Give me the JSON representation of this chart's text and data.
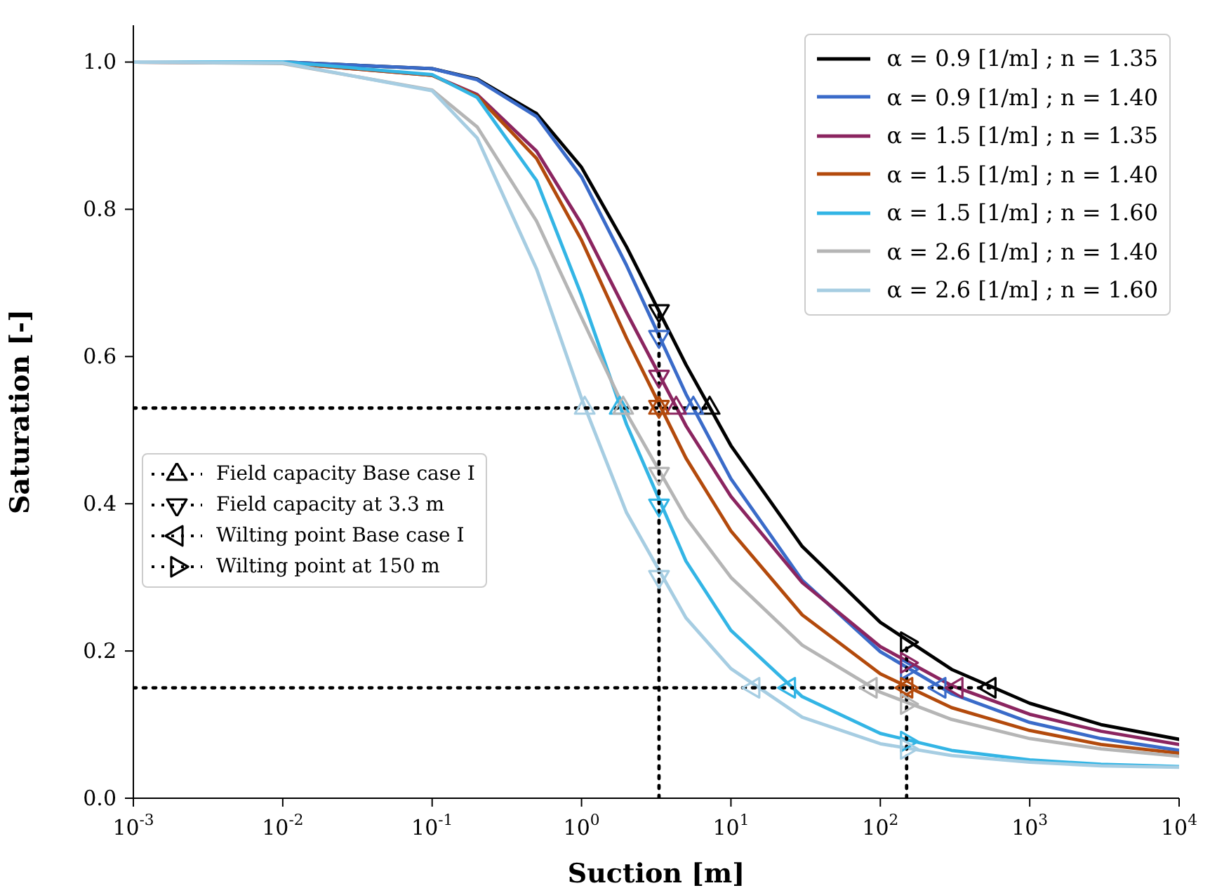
{
  "chart_data": {
    "type": "line",
    "xlabel": "Suction [m]",
    "ylabel": "Saturation [-]",
    "log": "x",
    "legend": "top right",
    "xlim": [
      0.001,
      10000
    ],
    "xticks": [
      {
        "value": 0.001,
        "label": "10$^{-3}$"
      },
      {
        "value": 0.01,
        "label": "10$^{-2}$"
      },
      {
        "value": 0.1,
        "label": "10$^{-1}$"
      },
      {
        "value": 1,
        "label": "10$^{0}$"
      },
      {
        "value": 10,
        "label": "10$^{1}$"
      },
      {
        "value": 100,
        "label": "10$^{2}$"
      },
      {
        "value": 1000,
        "label": "10$^{3}$"
      },
      {
        "value": 10000,
        "label": "10$^{4}$"
      }
    ],
    "ylim": [
      0,
      1.05
    ],
    "yticks": [
      {
        "value": 0,
        "label": "0.0"
      },
      {
        "value": 0.2,
        "label": "0.2"
      },
      {
        "value": 0.4,
        "label": "0.4"
      },
      {
        "value": 0.6,
        "label": "0.6"
      },
      {
        "value": 0.8,
        "label": "0.8"
      },
      {
        "value": 1,
        "label": "1.0"
      }
    ],
    "x": [
      0.001,
      0.01,
      0.1,
      0.2,
      0.5,
      1,
      2,
      5,
      10,
      30,
      100,
      300,
      1000,
      3000,
      10000
    ],
    "series": [
      {
        "name": "α = 0.9 [1/m] ; n = 1.35",
        "color": "#000000",
        "values": [
          1.0,
          1.0,
          0.991,
          0.977,
          0.93,
          0.857,
          0.749,
          0.589,
          0.479,
          0.342,
          0.239,
          0.175,
          0.129,
          0.1,
          0.08
        ]
      },
      {
        "name": "α = 0.9 [1/m] ; n = 1.40",
        "color": "#3a6bc9",
        "values": [
          1.0,
          1.0,
          0.991,
          0.976,
          0.926,
          0.844,
          0.724,
          0.549,
          0.434,
          0.296,
          0.199,
          0.142,
          0.103,
          0.081,
          0.065
        ]
      },
      {
        "name": "α = 1.5 [1/m] ; n = 1.35",
        "color": "#8b2560",
        "values": [
          1.0,
          0.999,
          0.982,
          0.956,
          0.879,
          0.78,
          0.66,
          0.506,
          0.41,
          0.293,
          0.206,
          0.153,
          0.114,
          0.091,
          0.073
        ]
      },
      {
        "name": "α = 1.5 [1/m] ; n = 1.40",
        "color": "#b34a0c",
        "values": [
          1.0,
          0.999,
          0.982,
          0.954,
          0.869,
          0.758,
          0.625,
          0.462,
          0.363,
          0.249,
          0.169,
          0.123,
          0.092,
          0.073,
          0.061
        ]
      },
      {
        "name": "α = 1.5 [1/m] ; n = 1.60",
        "color": "#33b5e5",
        "values": [
          1.0,
          1.0,
          0.983,
          0.952,
          0.839,
          0.683,
          0.508,
          0.322,
          0.228,
          0.138,
          0.088,
          0.065,
          0.052,
          0.046,
          0.043
        ]
      },
      {
        "name": "α = 2.6 [1/m] ; n = 1.40",
        "color": "#b5b5b5",
        "values": [
          1.0,
          0.998,
          0.962,
          0.912,
          0.784,
          0.653,
          0.523,
          0.381,
          0.3,
          0.208,
          0.144,
          0.107,
          0.081,
          0.067,
          0.057
        ]
      },
      {
        "name": "α = 2.6 [1/m] ; n = 1.60",
        "color": "#a6cde2",
        "values": [
          1.0,
          0.999,
          0.961,
          0.897,
          0.719,
          0.543,
          0.388,
          0.245,
          0.176,
          0.11,
          0.074,
          0.058,
          0.049,
          0.044,
          0.042
        ]
      },
      {
        "type": "line",
        "color": "#000000",
        "line_style": "dotted",
        "x": [
          0.001,
          7.2
        ],
        "values": [
          0.53,
          0.53
        ]
      },
      {
        "type": "line",
        "color": "#000000",
        "line_style": "dotted",
        "x": [
          0.001,
          541
        ],
        "values": [
          0.15,
          0.15
        ]
      },
      {
        "type": "line",
        "color": "#000000",
        "line_style": "dotted",
        "x": [
          3.3,
          3.3
        ],
        "values": [
          0,
          0.662
        ]
      },
      {
        "type": "line",
        "color": "#000000",
        "line_style": "dotted",
        "x": [
          150,
          150
        ],
        "values": [
          0,
          0.212
        ]
      },
      {
        "type": "scatter",
        "name": "Field capacity Base case I",
        "marker": "triangle",
        "color": "#000000",
        "x": [
          7.2,
          5.6,
          4.3,
          3.3,
          1.8,
          1.9,
          1.05
        ],
        "values": [
          0.53,
          0.53,
          0.53,
          0.53,
          0.53,
          0.53,
          0.53
        ],
        "colors": [
          "#000000",
          "#3a6bc9",
          "#8b2560",
          "#b34a0c",
          "#33b5e5",
          "#b5b5b5",
          "#a6cde2"
        ]
      },
      {
        "type": "scatter",
        "name": "Field capacity at 3.3 m",
        "marker": "triangle",
        "color": "#000000",
        "x": [
          3.3,
          3.3,
          3.3,
          3.3,
          3.3,
          3.3,
          3.3
        ],
        "values": [
          0.662,
          0.627,
          0.573,
          0.532,
          0.398,
          0.441,
          0.301
        ],
        "colors": [
          "#000000",
          "#3a6bc9",
          "#8b2560",
          "#b34a0c",
          "#33b5e5",
          "#b5b5b5",
          "#a6cde2"
        ]
      },
      {
        "type": "scatter",
        "name": "Wilting point Base case I",
        "marker": "triangle",
        "color": "#000000",
        "x": [
          541,
          250,
          325,
          150,
          24.6,
          86.6,
          14.2
        ],
        "values": [
          0.15,
          0.15,
          0.15,
          0.15,
          0.15,
          0.15,
          0.15
        ],
        "colors": [
          "#000000",
          "#3a6bc9",
          "#8b2560",
          "#b34a0c",
          "#33b5e5",
          "#b5b5b5",
          "#a6cde2"
        ]
      },
      {
        "type": "scatter",
        "name": "Wilting point at 150 m",
        "marker": "triangle",
        "color": "#000000",
        "x": [
          150,
          150,
          150,
          150,
          150,
          150,
          150
        ],
        "values": [
          0.212,
          0.175,
          0.184,
          0.15,
          0.077,
          0.128,
          0.067
        ],
        "colors": [
          "#000000",
          "#3a6bc9",
          "#8b2560",
          "#b34a0c",
          "#33b5e5",
          "#b5b5b5",
          "#a6cde2"
        ]
      }
    ]
  }
}
